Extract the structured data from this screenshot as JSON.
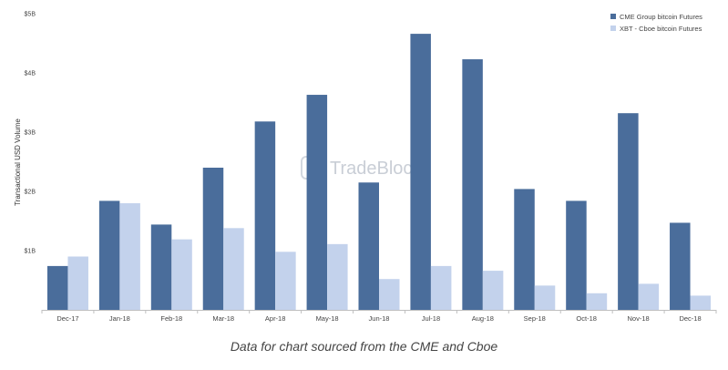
{
  "chart_data": {
    "type": "bar",
    "categories": [
      "Dec-17",
      "Jan-18",
      "Feb-18",
      "Mar-18",
      "Apr-18",
      "May-18",
      "Jun-18",
      "Jul-18",
      "Aug-18",
      "Sep-18",
      "Oct-18",
      "Nov-18",
      "Dec-18"
    ],
    "series": [
      {
        "name": "CME Group bitcoin Futures",
        "color": "#4a6d9b",
        "values": [
          0.74,
          1.84,
          1.44,
          2.4,
          3.18,
          3.63,
          2.15,
          4.66,
          4.23,
          2.04,
          1.84,
          3.32,
          1.47
        ]
      },
      {
        "name": "XBT - Cboe bitcoin Futures",
        "color": "#c3d2ec",
        "values": [
          0.9,
          1.8,
          1.19,
          1.38,
          0.98,
          1.11,
          0.52,
          0.74,
          0.66,
          0.41,
          0.28,
          0.44,
          0.24
        ]
      }
    ],
    "y_ticks": [
      "$1B",
      "$2B",
      "$3B",
      "$4B",
      "$5B"
    ],
    "ylabel": "Transactional USD Volume",
    "ylim": [
      0,
      5
    ],
    "grid": false,
    "legend_position": "top-right"
  },
  "watermark": "TradeBlock",
  "caption": "Data for chart sourced from the CME and Cboe"
}
